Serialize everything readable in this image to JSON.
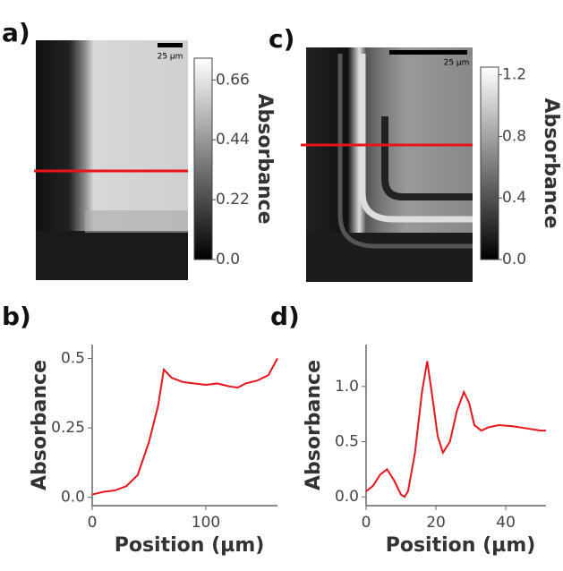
{
  "chart_data": [
    {
      "type": "image",
      "label": "a)",
      "colorbar_label": "Absorbance",
      "scale_bar": "25 µm",
      "clim": [
        0,
        0.74
      ],
      "cticks": [
        {
          "value": 0,
          "label": "0.0"
        },
        0.22,
        0.44,
        0.66
      ]
    },
    {
      "type": "line",
      "label": "b)",
      "xlabel": "Position (µm)",
      "ylabel": "Absorbance",
      "color": "#e8141b",
      "x": [
        0,
        10,
        20,
        30,
        40,
        50,
        58,
        63,
        70,
        80,
        90,
        100,
        110,
        120,
        128,
        135,
        145,
        155,
        163
      ],
      "y": [
        0.01,
        0.02,
        0.025,
        0.04,
        0.08,
        0.2,
        0.33,
        0.46,
        0.43,
        0.415,
        0.41,
        0.405,
        0.41,
        0.4,
        0.395,
        0.41,
        0.42,
        0.44,
        0.5
      ],
      "xlim": [
        0,
        163
      ],
      "ylim": [
        -0.03,
        0.55
      ],
      "xticks": [
        0,
        100
      ],
      "yticks": [
        {
          "value": 0,
          "label": "0.0"
        },
        0.25,
        0.5
      ]
    },
    {
      "type": "image",
      "label": "c)",
      "colorbar_label": "Absorbance",
      "scale_bar": "25 µm",
      "clim": [
        0,
        1.25
      ],
      "cticks": [
        {
          "value": 0,
          "label": "0.0"
        },
        0.4,
        0.8,
        1.2
      ]
    },
    {
      "type": "line",
      "label": "d)",
      "xlabel": "Position (µm)",
      "ylabel": "Absorbance",
      "color": "#e8141b",
      "x": [
        0,
        2,
        4,
        6,
        8,
        10,
        11,
        12,
        14,
        16,
        17.5,
        19,
        20.5,
        22,
        24,
        26,
        28,
        29.5,
        31,
        33,
        35,
        38,
        42,
        46,
        50,
        51.5
      ],
      "y": [
        0.05,
        0.1,
        0.2,
        0.25,
        0.15,
        0.02,
        0.0,
        0.05,
        0.4,
        0.95,
        1.23,
        0.9,
        0.55,
        0.4,
        0.5,
        0.78,
        0.95,
        0.85,
        0.65,
        0.6,
        0.63,
        0.65,
        0.64,
        0.62,
        0.6,
        0.6
      ],
      "xlim": [
        0,
        51.5
      ],
      "ylim": [
        -0.08,
        1.38
      ],
      "xticks": [
        0,
        20,
        40
      ],
      "yticks": [
        {
          "value": 0,
          "label": "0.0"
        },
        0.5,
        {
          "value": 1,
          "label": "1.0"
        }
      ]
    }
  ]
}
